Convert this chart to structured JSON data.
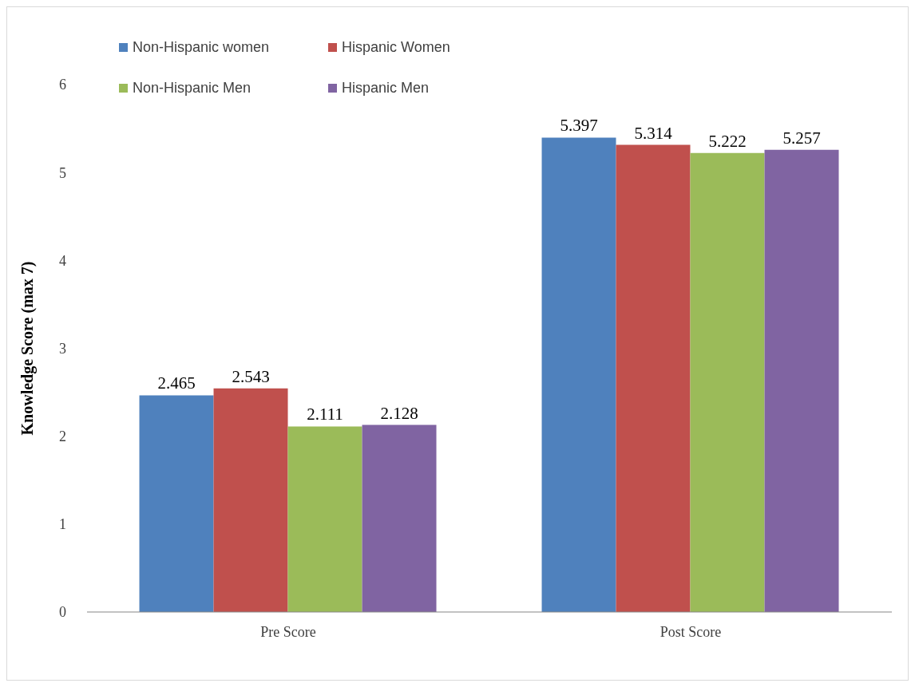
{
  "chart_data": {
    "type": "bar",
    "ylabel": "Knowledge Score (max 7)",
    "categories": [
      "Pre Score",
      "Post Score"
    ],
    "series": [
      {
        "name": "Non-Hispanic women",
        "color": "#4f81bd",
        "values": [
          2.465,
          5.397
        ]
      },
      {
        "name": "Hispanic Women",
        "color": "#c0504d",
        "values": [
          2.543,
          5.314
        ]
      },
      {
        "name": "Non-Hispanic Men",
        "color": "#9bbb59",
        "values": [
          2.111,
          5.222
        ]
      },
      {
        "name": "Hispanic Men",
        "color": "#8064a2",
        "values": [
          2.128,
          5.257
        ]
      }
    ],
    "ylim": [
      0,
      6
    ],
    "yticks": [
      0,
      1,
      2,
      3,
      4,
      5,
      6
    ],
    "data_labels": true,
    "legend": "top left",
    "grid": false
  }
}
